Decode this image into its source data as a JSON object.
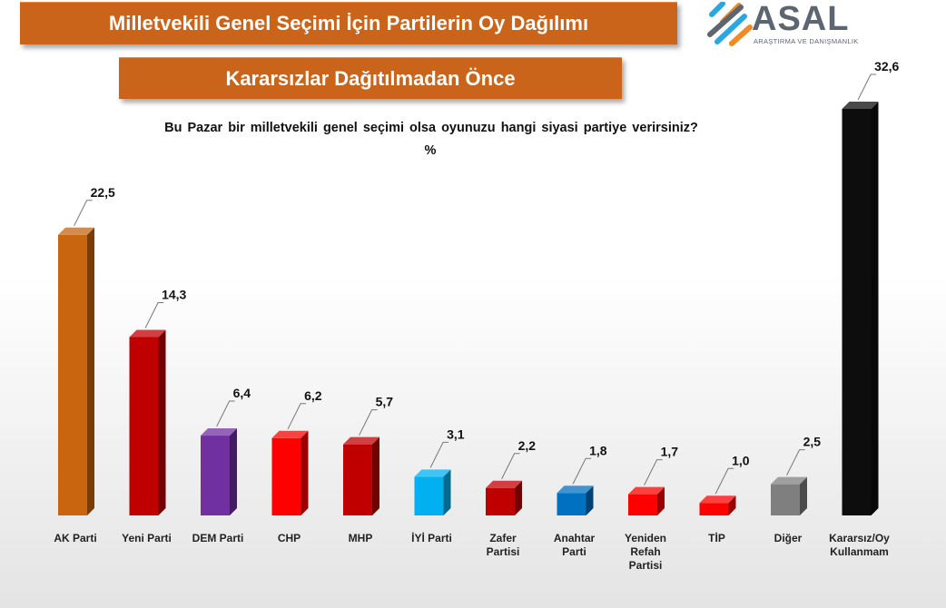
{
  "header": {
    "title": "Milletvekili Genel Seçimi İçin Partilerin Oy Dağılımı",
    "subtitle": "Kararsızlar Dağıtılmadan Önce"
  },
  "logo": {
    "name": "ASAL",
    "tagline": "ARAŞTIRMA VE DANIŞMANLIK"
  },
  "chart_data": {
    "type": "bar",
    "title": "Bu Pazar bir milletvekili genel seçimi olsa oyunuzu hangi siyasi partiye verirsiniz?",
    "unit": "%",
    "categories": [
      "AK Parti",
      "Yeni Parti",
      "DEM Parti",
      "CHP",
      "MHP",
      "İYİ Parti",
      "Zafer\nPartisi",
      "Anahtar\nParti",
      "Yeniden\nRefah\nPartisi",
      "TİP",
      "Diğer",
      "Kararsız/Oy\nKullanmam"
    ],
    "values": [
      22.5,
      14.3,
      6.4,
      6.2,
      5.7,
      3.1,
      2.2,
      1.8,
      1.7,
      1.0,
      2.5,
      32.6
    ],
    "value_labels": [
      "22,5",
      "14,3",
      "6,4",
      "6,2",
      "5,7",
      "3,1",
      "2,2",
      "1,8",
      "1,7",
      "1,0",
      "2,5",
      "32,6"
    ],
    "colors": [
      "#c9640f",
      "#c00000",
      "#7030a0",
      "#ff0000",
      "#c00000",
      "#00b0f0",
      "#c00000",
      "#0070c0",
      "#ff0000",
      "#ff0000",
      "#7f7f7f",
      "#0d0d0d"
    ],
    "ylim": [
      0,
      35
    ],
    "style": "3d-column",
    "grid": false,
    "legend": "none"
  }
}
